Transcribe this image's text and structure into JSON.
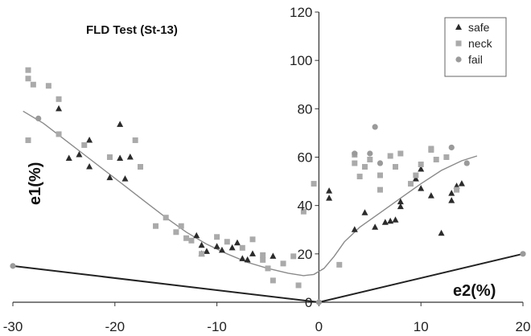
{
  "chart_data": {
    "type": "scatter",
    "title": "FLD Test (St-13)",
    "xlabel": "e2(%)",
    "ylabel": "e1(%)",
    "xlim": [
      -30,
      20
    ],
    "ylim": [
      0,
      120
    ],
    "x_ticks": [
      -30,
      -20,
      -10,
      0,
      10,
      20
    ],
    "y_ticks": [
      0,
      20,
      40,
      60,
      80,
      100,
      120
    ],
    "grid": false,
    "legend_position": "top-right",
    "series": [
      {
        "name": "safe",
        "marker": "triangle",
        "color": "#2b2b2b",
        "points": [
          [
            -25.5,
            80
          ],
          [
            -24.5,
            59.5
          ],
          [
            -23.5,
            61
          ],
          [
            -22.5,
            67
          ],
          [
            -22.5,
            56
          ],
          [
            -20.5,
            51.5
          ],
          [
            -19.5,
            73.5
          ],
          [
            -19.5,
            59.5
          ],
          [
            -19,
            51
          ],
          [
            -18.5,
            60
          ],
          [
            -12,
            27.5
          ],
          [
            -11.5,
            23.5
          ],
          [
            -11.5,
            20
          ],
          [
            -11,
            21
          ],
          [
            -10,
            23
          ],
          [
            -9.5,
            21.5
          ],
          [
            -8.5,
            22.5
          ],
          [
            -8,
            24.5
          ],
          [
            -7.5,
            18
          ],
          [
            -7,
            17.5
          ],
          [
            -6.5,
            20
          ],
          [
            -4.5,
            19
          ],
          [
            1,
            46
          ],
          [
            1,
            43
          ],
          [
            3.5,
            30
          ],
          [
            4.5,
            37
          ],
          [
            5.5,
            31
          ],
          [
            6.5,
            33
          ],
          [
            7,
            33.5
          ],
          [
            7.5,
            34
          ],
          [
            8,
            39.5
          ],
          [
            8,
            41.5
          ],
          [
            9.5,
            51
          ],
          [
            10,
            55
          ],
          [
            10,
            47
          ],
          [
            11,
            44
          ],
          [
            12,
            28.5
          ],
          [
            13,
            45
          ],
          [
            13,
            42
          ],
          [
            13.5,
            48
          ],
          [
            14,
            49
          ]
        ]
      },
      {
        "name": "neck",
        "marker": "square",
        "color": "#aaaaaa",
        "points": [
          [
            -28.5,
            96
          ],
          [
            -28.5,
            92.5
          ],
          [
            -28.5,
            67
          ],
          [
            -28,
            90
          ],
          [
            -26.5,
            89.5
          ],
          [
            -25.5,
            84
          ],
          [
            -25.5,
            69.5
          ],
          [
            -23,
            65
          ],
          [
            -20.5,
            60
          ],
          [
            -18,
            67
          ],
          [
            -17.5,
            56
          ],
          [
            -16,
            31.5
          ],
          [
            -15,
            35
          ],
          [
            -14,
            29
          ],
          [
            -13.5,
            31.5
          ],
          [
            -13,
            26.5
          ],
          [
            -12.5,
            25.5
          ],
          [
            -11.5,
            20
          ],
          [
            -10,
            27
          ],
          [
            -9,
            25
          ],
          [
            -7.5,
            22.5
          ],
          [
            -6.5,
            26
          ],
          [
            -5.5,
            19.5
          ],
          [
            -5.5,
            17.5
          ],
          [
            -5,
            14
          ],
          [
            -4.5,
            9
          ],
          [
            -3.5,
            16
          ],
          [
            -2.5,
            19
          ],
          [
            -2,
            7
          ],
          [
            -1.5,
            37.5
          ],
          [
            -0.5,
            49
          ],
          [
            2,
            15.5
          ],
          [
            3.5,
            61
          ],
          [
            3.5,
            57.5
          ],
          [
            4,
            52
          ],
          [
            4.5,
            56
          ],
          [
            5,
            59
          ],
          [
            6,
            52.5
          ],
          [
            6,
            46.5
          ],
          [
            7,
            60.5
          ],
          [
            7.5,
            56
          ],
          [
            8,
            61.5
          ],
          [
            9,
            49
          ],
          [
            9.5,
            52.5
          ],
          [
            10,
            57
          ],
          [
            11,
            63
          ],
          [
            11,
            63.5
          ],
          [
            11.5,
            59
          ],
          [
            12.5,
            60
          ],
          [
            13.5,
            46.5
          ]
        ]
      },
      {
        "name": "fail",
        "marker": "circle",
        "color": "#9a9a9a",
        "points": [
          [
            -27.5,
            76
          ],
          [
            -30,
            15
          ],
          [
            0,
            0
          ],
          [
            3.5,
            61.5
          ],
          [
            5,
            61.5
          ],
          [
            5.5,
            72.5
          ],
          [
            6,
            57.5
          ],
          [
            13,
            64
          ],
          [
            14.5,
            57.5
          ],
          [
            20,
            20
          ]
        ]
      }
    ],
    "curves": [
      {
        "role": "fitted FLC",
        "color": "#8a8a8a",
        "points": [
          [
            -29,
            79
          ],
          [
            -27,
            74
          ],
          [
            -25,
            67.5
          ],
          [
            -23,
            61
          ],
          [
            -21,
            54.5
          ],
          [
            -19,
            48
          ],
          [
            -17,
            41.5
          ],
          [
            -15,
            35
          ],
          [
            -13,
            29
          ],
          [
            -11,
            24
          ],
          [
            -9,
            20
          ],
          [
            -7,
            16.5
          ],
          [
            -5,
            14
          ],
          [
            -3,
            12
          ],
          [
            -1.5,
            11
          ],
          [
            -0.5,
            11.5
          ],
          [
            0.5,
            14
          ],
          [
            1.5,
            19
          ],
          [
            2.5,
            25
          ],
          [
            4,
            31
          ],
          [
            6,
            37
          ],
          [
            8,
            43
          ],
          [
            10,
            49
          ],
          [
            12,
            54.5
          ],
          [
            14,
            58.5
          ],
          [
            15.5,
            60.5
          ]
        ]
      },
      {
        "role": "lower limit",
        "color": "#222222",
        "points": [
          [
            -30,
            15
          ],
          [
            0,
            0
          ],
          [
            20,
            20
          ]
        ]
      }
    ]
  }
}
